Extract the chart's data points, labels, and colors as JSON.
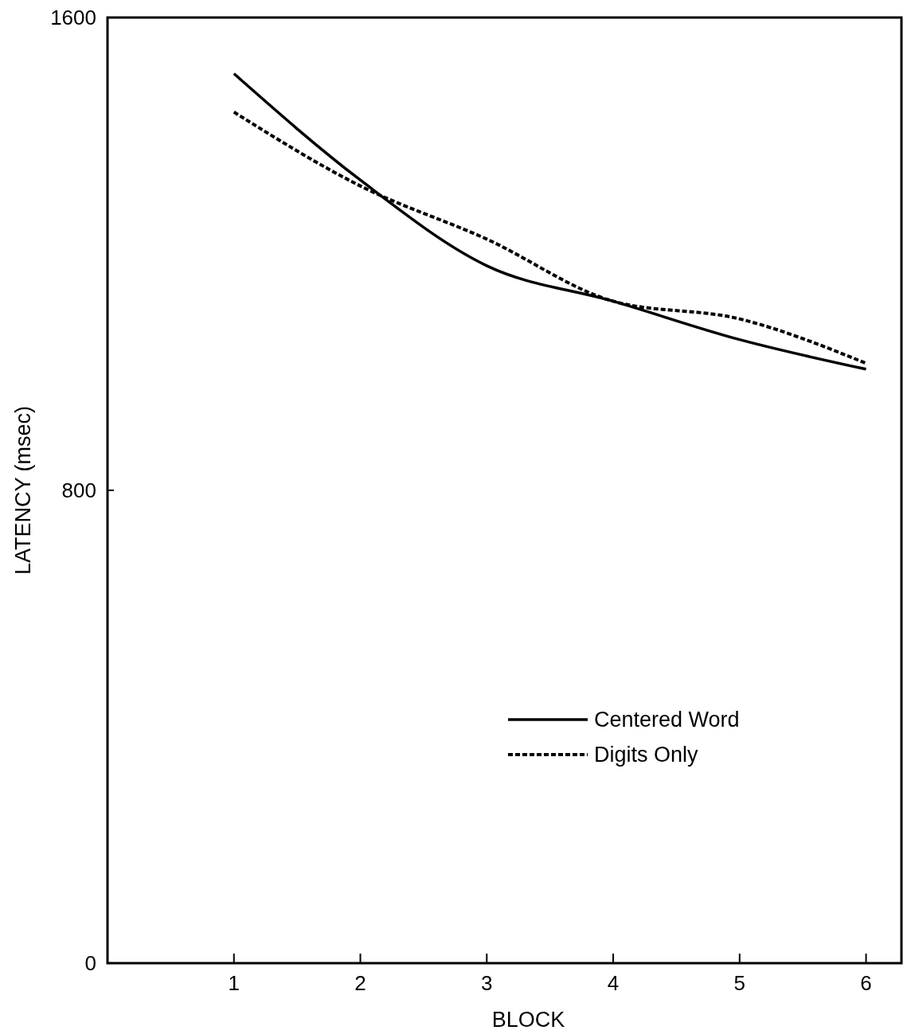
{
  "chart_data": {
    "type": "line",
    "xlabel": "BLOCK",
    "ylabel": "LATENCY (msec)",
    "x": [
      1,
      2,
      3,
      4,
      5,
      6
    ],
    "xlim": [
      0,
      6.28
    ],
    "xticks": [
      1,
      2,
      3,
      4,
      5,
      6
    ],
    "ylim": [
      0,
      1600
    ],
    "yticks": [
      0,
      800,
      1600
    ],
    "grid": false,
    "legend": "right",
    "marker": "none",
    "series": [
      {
        "name": "Centered Word",
        "color": "#000000",
        "line_style": "solid",
        "values": [
          1505,
          1325,
          1180,
          1120,
          1055,
          1005
        ]
      },
      {
        "name": "Digits Only",
        "color": "#000000",
        "line_style": "dotted",
        "values": [
          1440,
          1315,
          1225,
          1120,
          1090,
          1015
        ]
      }
    ]
  }
}
